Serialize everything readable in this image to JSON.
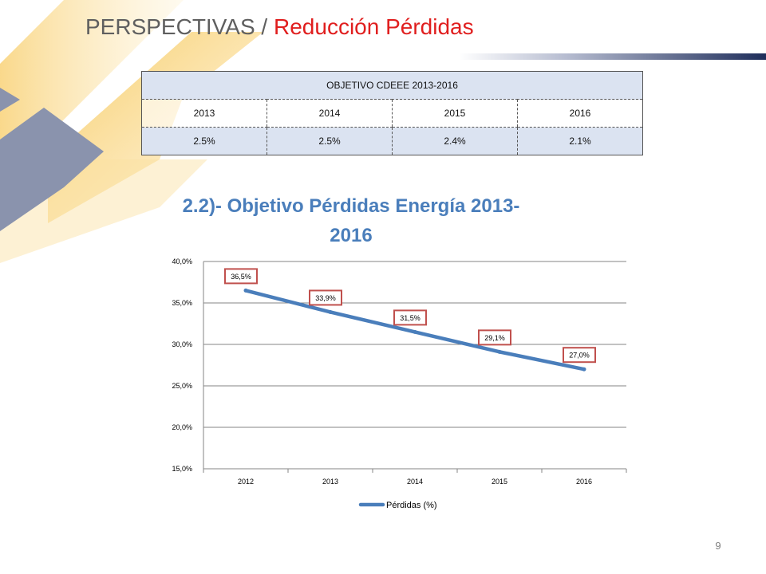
{
  "slide": {
    "title_part1": "PERSPECTIVAS",
    "title_sep": " / ",
    "title_part2": "Reducción Pérdidas",
    "page_number": "9"
  },
  "objective_table": {
    "header": "OBJETIVO  CDEEE 2013-2016",
    "years": [
      "2013",
      "2014",
      "2015",
      "2016"
    ],
    "values": [
      "2.5%",
      "2.5%",
      "2.4%",
      "2.1%"
    ]
  },
  "colors": {
    "title_accent": "#e01e1e",
    "chart_title": "#4a7ebb",
    "series_line": "#4a7ebb",
    "data_label_border": "#c0504d",
    "table_fill": "#dbe3f1"
  },
  "chart_data": {
    "type": "line",
    "title_line1": "2.2)- Objetivo Pérdidas Energía 2013-",
    "title_line2": "2016",
    "categories": [
      "2012",
      "2013",
      "2014",
      "2015",
      "2016"
    ],
    "series": [
      {
        "name": "Pérdidas (%)",
        "values": [
          36.5,
          33.9,
          31.5,
          29.1,
          27.0
        ],
        "labels": [
          "36,5%",
          "33,9%",
          "31,5%",
          "29,1%",
          "27,0%"
        ]
      }
    ],
    "ylim": [
      15,
      40
    ],
    "yticks": [
      "15,0%",
      "20,0%",
      "25,0%",
      "30,0%",
      "35,0%",
      "40,0%"
    ],
    "grid": true,
    "legend_position": "bottom"
  }
}
